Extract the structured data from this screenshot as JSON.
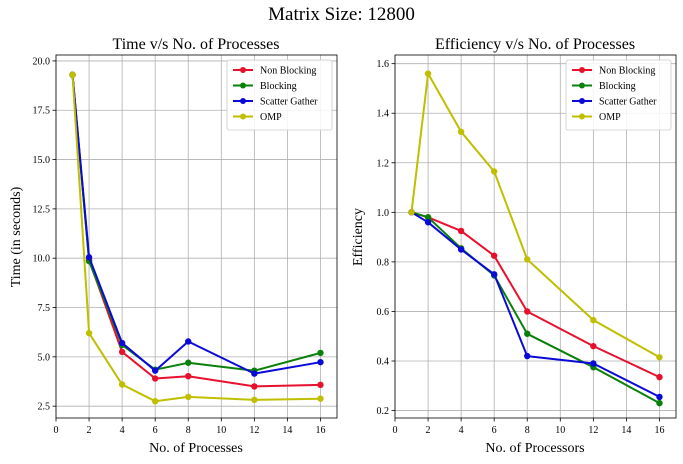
{
  "suptitle": "Matrix Size: 12800",
  "colors": {
    "non_blocking": "#e8112d",
    "blocking": "#0a800a",
    "scatter_gather": "#0a0ad8",
    "omp": "#bfbf00",
    "grid": "#b0b0b0"
  },
  "chart_data": [
    {
      "type": "line",
      "title": "Time v/s No. of Processes",
      "xlabel": "No. of Processes",
      "ylabel": "Time (in seconds)",
      "xlim": [
        0,
        17
      ],
      "ylim": [
        1.9,
        20.3
      ],
      "xticks": [
        0,
        2,
        4,
        6,
        8,
        10,
        12,
        14,
        16
      ],
      "yticks": [
        2.5,
        5.0,
        7.5,
        10.0,
        12.5,
        15.0,
        17.5,
        20.0
      ],
      "ytick_labels": [
        "2.5",
        "5.0",
        "7.5",
        "10.0",
        "12.5",
        "15.0",
        "17.5",
        "20.0"
      ],
      "grid": true,
      "legend": "top-right",
      "x": [
        1,
        2,
        4,
        6,
        8,
        12,
        16
      ],
      "series": [
        {
          "name": "Non Blocking",
          "color_key": "non_blocking",
          "values": [
            19.3,
            9.9,
            5.25,
            3.9,
            4.02,
            3.5,
            3.58
          ]
        },
        {
          "name": "Blocking",
          "color_key": "blocking",
          "values": [
            19.3,
            9.85,
            5.6,
            4.35,
            4.7,
            4.3,
            5.2
          ]
        },
        {
          "name": "Scatter Gather",
          "color_key": "scatter_gather",
          "values": [
            19.3,
            10.05,
            5.7,
            4.3,
            5.78,
            4.15,
            4.73
          ]
        },
        {
          "name": "OMP",
          "color_key": "omp",
          "values": [
            19.3,
            6.2,
            3.6,
            2.75,
            2.97,
            2.82,
            2.88
          ]
        }
      ]
    },
    {
      "type": "line",
      "title": "Efficiency v/s No. of Processes",
      "xlabel": "No. of Processors",
      "ylabel": "Efficiency",
      "xlim": [
        0,
        17
      ],
      "ylim": [
        0.17,
        1.635
      ],
      "xticks": [
        0,
        2,
        4,
        6,
        8,
        10,
        12,
        14,
        16
      ],
      "yticks": [
        0.2,
        0.4,
        0.6,
        0.8,
        1.0,
        1.2,
        1.4,
        1.6
      ],
      "ytick_labels": [
        "0.2",
        "0.4",
        "0.6",
        "0.8",
        "1.0",
        "1.2",
        "1.4",
        "1.6"
      ],
      "grid": true,
      "legend": "top-right",
      "x": [
        1,
        2,
        4,
        6,
        8,
        12,
        16
      ],
      "series": [
        {
          "name": "Non Blocking",
          "color_key": "non_blocking",
          "values": [
            1.0,
            0.98,
            0.925,
            0.825,
            0.6,
            0.46,
            0.335
          ]
        },
        {
          "name": "Blocking",
          "color_key": "blocking",
          "values": [
            1.0,
            0.98,
            0.855,
            0.745,
            0.51,
            0.375,
            0.23
          ]
        },
        {
          "name": "Scatter Gather",
          "color_key": "scatter_gather",
          "values": [
            1.0,
            0.96,
            0.85,
            0.75,
            0.42,
            0.39,
            0.255
          ]
        },
        {
          "name": "OMP",
          "color_key": "omp",
          "values": [
            1.0,
            1.56,
            1.325,
            1.165,
            0.81,
            0.565,
            0.415
          ]
        }
      ]
    }
  ]
}
